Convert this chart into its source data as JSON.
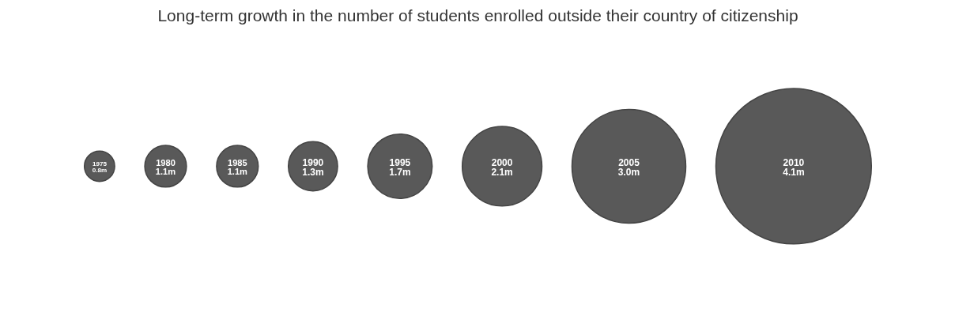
{
  "chart_data": {
    "type": "other",
    "title": "Long-term growth in the number of students enrolled outside their country of citizenship",
    "categories": [
      "1975",
      "1980",
      "1985",
      "1990",
      "1995",
      "2000",
      "2005",
      "2010"
    ],
    "values": [
      0.8,
      1.1,
      1.1,
      1.3,
      1.7,
      2.1,
      3.0,
      4.1
    ],
    "value_labels": [
      "0.8m",
      "1.1m",
      "1.1m",
      "1.3m",
      "1.7m",
      "2.1m",
      "3.0m",
      "4.1m"
    ],
    "color": "#595959"
  }
}
